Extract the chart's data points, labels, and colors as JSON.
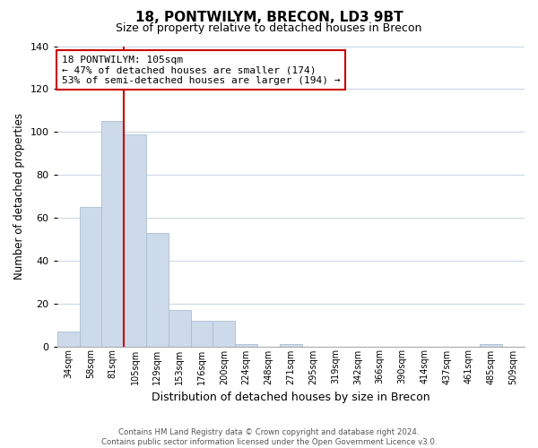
{
  "title": "18, PONTWILYM, BRECON, LD3 9BT",
  "subtitle": "Size of property relative to detached houses in Brecon",
  "xlabel": "Distribution of detached houses by size in Brecon",
  "ylabel": "Number of detached properties",
  "bar_labels": [
    "34sqm",
    "58sqm",
    "81sqm",
    "105sqm",
    "129sqm",
    "153sqm",
    "176sqm",
    "200sqm",
    "224sqm",
    "248sqm",
    "271sqm",
    "295sqm",
    "319sqm",
    "342sqm",
    "366sqm",
    "390sqm",
    "414sqm",
    "437sqm",
    "461sqm",
    "485sqm",
    "509sqm"
  ],
  "bar_heights": [
    7,
    65,
    105,
    99,
    53,
    17,
    12,
    12,
    1,
    0,
    1,
    0,
    0,
    0,
    0,
    0,
    0,
    0,
    0,
    1,
    0
  ],
  "bar_color": "#cddaea",
  "bar_edge_color": "#aabfcf",
  "highlight_bar_index": 3,
  "red_line_x": 2.5,
  "ylim": [
    0,
    140
  ],
  "yticks": [
    0,
    20,
    40,
    60,
    80,
    100,
    120,
    140
  ],
  "annotation_box_text": "18 PONTWILYM: 105sqm\n← 47% of detached houses are smaller (174)\n53% of semi-detached houses are larger (194) →",
  "footer_line1": "Contains HM Land Registry data © Crown copyright and database right 2024.",
  "footer_line2": "Contains public sector information licensed under the Open Government Licence v3.0.",
  "background_color": "#ffffff",
  "grid_color": "#cdd8e5"
}
